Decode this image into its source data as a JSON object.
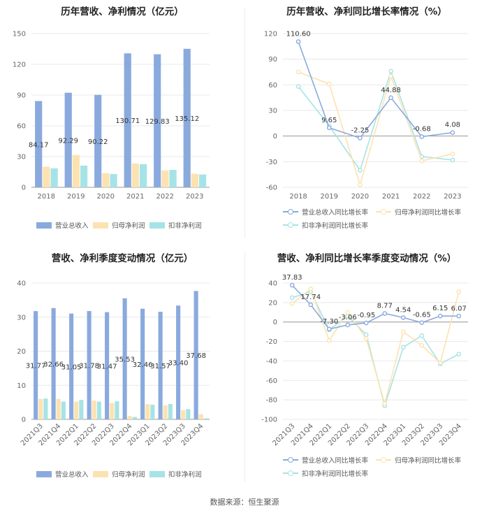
{
  "footer": "数据来源：恒生聚源",
  "colors": {
    "revenue": "#8aaade",
    "parent_profit": "#fde2b1",
    "deducted_profit": "#a6e3e6",
    "grid": "#e8e8e8",
    "axis": "#cccccc"
  },
  "chart_data": [
    {
      "id": "annual-amounts",
      "type": "bar",
      "title": "历年营收、净利情况（亿元）",
      "categories": [
        "2018",
        "2019",
        "2020",
        "2021",
        "2022",
        "2023"
      ],
      "ylim": [
        0,
        150
      ],
      "yticks": [
        0,
        30,
        60,
        90,
        120,
        150
      ],
      "series": [
        {
          "name": "营业总收入",
          "values": [
            84.17,
            92.29,
            90.22,
            130.71,
            129.83,
            135.12
          ],
          "labels": [
            "84.17",
            "92.29",
            "90.22",
            "130.71",
            "129.83",
            "135.12"
          ]
        },
        {
          "name": "归母净利润",
          "values": [
            20.0,
            31.5,
            13.8,
            23.2,
            16.5,
            13.2
          ]
        },
        {
          "name": "扣非净利润",
          "values": [
            18.5,
            21.2,
            13.0,
            22.6,
            17.0,
            12.5
          ]
        }
      ]
    },
    {
      "id": "annual-growth",
      "type": "line",
      "title": "历年营收、净利同比增长率情况（%）",
      "categories": [
        "2018",
        "2019",
        "2020",
        "2021",
        "2022",
        "2023"
      ],
      "ylim": [
        -60,
        120
      ],
      "yticks": [
        -60,
        -30,
        0,
        30,
        60,
        90,
        120
      ],
      "series": [
        {
          "name": "营业总收入同比增长率",
          "values": [
            110.6,
            9.65,
            -2.25,
            44.88,
            -0.68,
            4.08
          ],
          "labels": [
            "110.60",
            "9.65",
            "-2.25",
            "44.88",
            "-0.68",
            "4.08"
          ]
        },
        {
          "name": "归母净利润同比增长率",
          "values": [
            75,
            61,
            -57,
            70,
            -29,
            -21
          ]
        },
        {
          "name": "扣非净利润同比增长率",
          "values": [
            58,
            12,
            -40,
            76,
            -24,
            -28
          ]
        }
      ]
    },
    {
      "id": "quarterly-amounts",
      "type": "bar",
      "title": "营收、净利季度变动情况（亿元）",
      "categories": [
        "2021Q3",
        "2021Q4",
        "2022Q1",
        "2022Q2",
        "2022Q3",
        "2022Q4",
        "2023Q1",
        "2023Q2",
        "2023Q3",
        "2023Q4"
      ],
      "ylim": [
        0,
        40
      ],
      "yticks": [
        0,
        10,
        20,
        30,
        40
      ],
      "series": [
        {
          "name": "营业总收入",
          "values": [
            31.77,
            32.66,
            31.05,
            31.78,
            31.47,
            35.53,
            32.46,
            31.57,
            33.4,
            37.68
          ],
          "labels": [
            "31.77",
            "32.66",
            "31.05",
            "31.78",
            "31.47",
            "35.53",
            "32.46",
            "31.57",
            "33.40",
            "37.68"
          ]
        },
        {
          "name": "归母净利润",
          "values": [
            6.0,
            6.0,
            5.2,
            5.5,
            4.8,
            1.0,
            4.5,
            4.1,
            2.7,
            1.5
          ]
        },
        {
          "name": "扣非净利润",
          "values": [
            6.1,
            5.2,
            5.7,
            5.2,
            5.3,
            0.7,
            4.3,
            4.5,
            3.0,
            0.3
          ]
        }
      ]
    },
    {
      "id": "quarterly-growth",
      "type": "line",
      "title": "营收、净利同比增长率季度变动情况（%）",
      "categories": [
        "2021Q3",
        "2021Q4",
        "2022Q1",
        "2022Q2",
        "2022Q3",
        "2022Q4",
        "2023Q1",
        "2023Q2",
        "2023Q3",
        "2023Q4"
      ],
      "ylim": [
        -100,
        40
      ],
      "yticks": [
        -100,
        -80,
        -60,
        -40,
        -20,
        0,
        20,
        40
      ],
      "series": [
        {
          "name": "营业总收入同比增长率",
          "values": [
            37.83,
            17.74,
            -7.3,
            -3.06,
            -0.95,
            8.77,
            4.54,
            -0.65,
            6.15,
            6.07
          ],
          "labels": [
            "37.83",
            "17.74",
            "-7.30",
            "-3.06",
            "-0.95",
            "8.77",
            "4.54",
            "-0.65",
            "6.15",
            "6.07"
          ]
        },
        {
          "name": "归母净利润同比增长率",
          "values": [
            19,
            34,
            -19,
            10,
            -17,
            -84,
            -10,
            -24,
            -42,
            31
          ]
        },
        {
          "name": "扣非净利润同比增长率",
          "values": [
            25,
            31,
            -8,
            6,
            -13,
            -86,
            -26,
            -14,
            -43,
            -33
          ]
        }
      ]
    }
  ]
}
